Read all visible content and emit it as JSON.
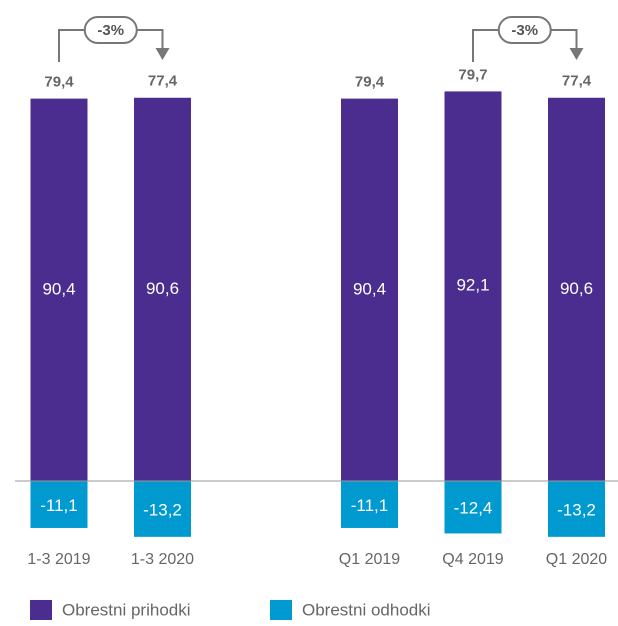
{
  "chart_data": {
    "type": "bar",
    "stacked": true,
    "categories": [
      "1-3 2019",
      "1-3 2020",
      "Q1 2019",
      "Q4 2019",
      "Q1 2020"
    ],
    "series": [
      {
        "name": "Obrestni prihodki",
        "color": "#4b2d8f",
        "values": [
          90.4,
          90.6,
          90.4,
          92.1,
          90.6
        ],
        "value_labels": [
          "90,4",
          "90,6",
          "90,4",
          "92,1",
          "90,6"
        ]
      },
      {
        "name": "Obrestni odhodki",
        "color": "#0099d0",
        "values": [
          -11.1,
          -13.2,
          -11.1,
          -12.4,
          -13.2
        ],
        "value_labels": [
          "-11,1",
          "-13,2",
          "-11,1",
          "-12,4",
          "-13,2"
        ]
      }
    ],
    "totals": {
      "values": [
        79.4,
        77.4,
        79.4,
        79.7,
        77.4
      ],
      "value_labels": [
        "79,4",
        "77,4",
        "79,4",
        "79,7",
        "77,4"
      ]
    },
    "annotations": [
      "-3%",
      "-3%"
    ],
    "legend": "bottom-left"
  }
}
